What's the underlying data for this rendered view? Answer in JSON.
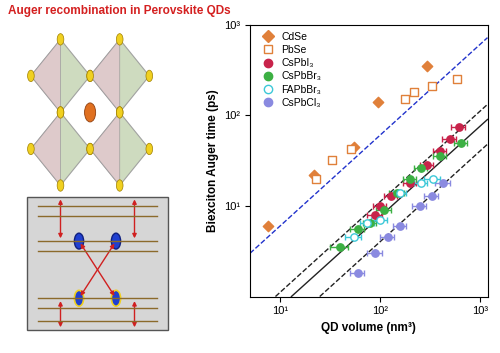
{
  "chart_data": {
    "type": "scatter",
    "title": "Auger recombination in Perovskite QDs",
    "x_label": "QD volume (nm³)",
    "y_label": "Biexciton Auger time (ps)",
    "log": true,
    "grid": false,
    "legend": "upper left",
    "xlim": [
      5,
      1200
    ],
    "ylim": [
      1,
      1000
    ],
    "xticks": [
      {
        "value": 10,
        "label": "10¹"
      },
      {
        "value": 100,
        "label": "10²"
      },
      {
        "value": 1000,
        "label": "10³"
      }
    ],
    "yticks": [
      {
        "value": 10,
        "label": "10¹"
      },
      {
        "value": 100,
        "label": "10²"
      },
      {
        "value": 1000,
        "label": "10³"
      }
    ],
    "series": [
      {
        "name": "CdSe",
        "type": "scatter",
        "marker": "diamond",
        "color": "#e0803a",
        "x": [
          7.5,
          22,
          55,
          95,
          300
        ],
        "values": [
          6,
          22,
          45,
          140,
          350
        ]
      },
      {
        "name": "PbSe",
        "type": "scatter",
        "marker": "open_square",
        "color": "#e0803a",
        "x": [
          23,
          33,
          52,
          180,
          220,
          330,
          600
        ],
        "values": [
          20,
          32,
          42,
          150,
          180,
          210,
          250
        ]
      },
      {
        "name": "CsPbI₃",
        "type": "scatter",
        "marker": "circle",
        "color": "#c8234a",
        "x": [
          90,
          100,
          130,
          200,
          300,
          400,
          500,
          620
        ],
        "values": [
          8,
          10,
          13,
          18,
          28,
          40,
          55,
          75
        ],
        "x_error": [
          15,
          15,
          20,
          30,
          45,
          60,
          80,
          100
        ]
      },
      {
        "name": "CsPbBr₃",
        "type": "scatter",
        "marker": "circle",
        "color": "#3cb043",
        "x": [
          40,
          60,
          80,
          110,
          150,
          200,
          260,
          400,
          650
        ],
        "values": [
          3.5,
          5.5,
          6.5,
          9,
          14,
          20,
          26,
          36,
          50
        ],
        "x_error": [
          8,
          10,
          12,
          18,
          25,
          30,
          40,
          60,
          90
        ]
      },
      {
        "name": "FAPbBr₃",
        "type": "scatter",
        "marker": "open_circle",
        "color": "#3cc8d8",
        "x": [
          55,
          75,
          100,
          160,
          260,
          340
        ],
        "values": [
          4.5,
          6.5,
          7,
          14,
          18,
          20
        ],
        "x_error": [
          10,
          12,
          18,
          25,
          40,
          60
        ]
      },
      {
        "name": "CsPbCl₃",
        "type": "scatter",
        "marker": "circle",
        "color": "#8a8ae0",
        "x": [
          60,
          90,
          120,
          160,
          250,
          330,
          430
        ],
        "values": [
          1.8,
          3,
          4.5,
          6,
          10,
          13,
          18
        ],
        "x_error": [
          10,
          15,
          20,
          25,
          40,
          50,
          70
        ]
      },
      {
        "type": "line",
        "line_style": "dashed",
        "color": "#2233cc",
        "x": [
          5,
          1200
        ],
        "values": [
          3,
          720
        ]
      },
      {
        "type": "line",
        "line_style": "dashed",
        "color": "#222222",
        "x": [
          9,
          1200
        ],
        "values": [
          1,
          132
        ]
      },
      {
        "type": "line",
        "line_style": "solid",
        "color": "#222222",
        "x": [
          13,
          1200
        ],
        "values": [
          1,
          90
        ]
      },
      {
        "type": "line",
        "line_style": "dashed",
        "color": "#222222",
        "x": [
          25,
          1200
        ],
        "values": [
          1,
          48
        ]
      }
    ]
  }
}
